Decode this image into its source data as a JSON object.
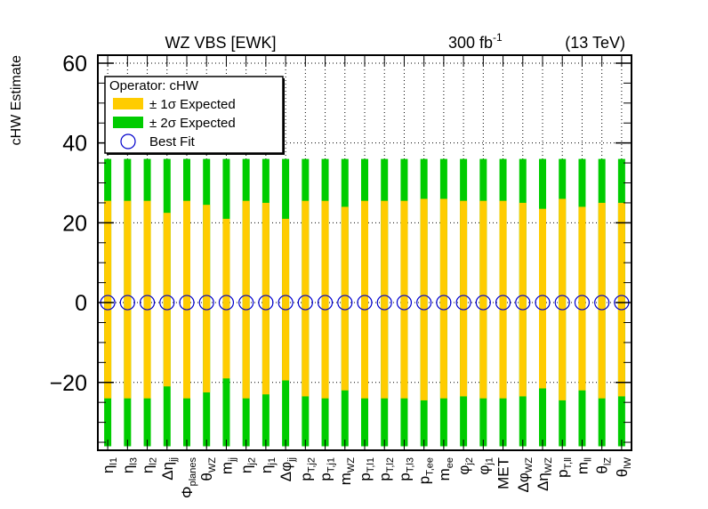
{
  "header": {
    "title": "WZ VBS [EWK]",
    "lumi": "300 fb",
    "lumi_exp": "-1",
    "energy": "(13 TeV)"
  },
  "legend": {
    "title": "Operator: cHW",
    "items": [
      {
        "label": "± 1σ Expected",
        "color": "#ffcc00"
      },
      {
        "label": "± 2σ Expected",
        "color": "#00cc00"
      },
      {
        "label": "Best Fit",
        "color": "#0000cc"
      }
    ]
  },
  "chart_data": {
    "type": "bar",
    "ylabel": "cHW Estimate",
    "ylim": [
      -37,
      62
    ],
    "yticks": [
      -20,
      0,
      20,
      40,
      60
    ],
    "grid": true,
    "legend_position": "top-left",
    "categories": [
      {
        "base": "η",
        "sub": "l1"
      },
      {
        "base": "η",
        "sub": "l3"
      },
      {
        "base": "η",
        "sub": "l2"
      },
      {
        "base": "Δη",
        "sub": "jj"
      },
      {
        "base": "Φ",
        "sub": "planes"
      },
      {
        "base": "θ",
        "sub": "WZ"
      },
      {
        "base": "m",
        "sub": "jj"
      },
      {
        "base": "η",
        "sub": "j2"
      },
      {
        "base": "η",
        "sub": "j1"
      },
      {
        "base": "Δφ",
        "sub": "jj"
      },
      {
        "base": "p",
        "sub": "T,j2"
      },
      {
        "base": "p",
        "sub": "T,j1"
      },
      {
        "base": "m",
        "sub": "WZ"
      },
      {
        "base": "p",
        "sub": "T,l1"
      },
      {
        "base": "p",
        "sub": "T,l2"
      },
      {
        "base": "p",
        "sub": "T,l3"
      },
      {
        "base": "p",
        "sub": "T,ee"
      },
      {
        "base": "m",
        "sub": "ee"
      },
      {
        "base": "φ",
        "sub": "j2"
      },
      {
        "base": "φ",
        "sub": "j1"
      },
      {
        "base": "MET",
        "sub": ""
      },
      {
        "base": "Δφ",
        "sub": "WZ"
      },
      {
        "base": "Δη",
        "sub": "WZ"
      },
      {
        "base": "p",
        "sub": "T,ll"
      },
      {
        "base": "m",
        "sub": "ll"
      },
      {
        "base": "θ",
        "sub": "lZ"
      },
      {
        "base": "θ",
        "sub": "lW"
      }
    ],
    "best_fit": [
      0,
      0,
      0,
      0,
      0,
      0,
      0,
      0,
      0,
      0,
      0,
      0,
      0,
      0,
      0,
      0,
      0,
      0,
      0,
      0,
      0,
      0,
      0,
      0,
      0,
      0,
      0
    ],
    "sigma1": [
      [
        -24,
        25.5
      ],
      [
        -24,
        25.5
      ],
      [
        -24,
        25.5
      ],
      [
        -21,
        22.5
      ],
      [
        -24,
        25.5
      ],
      [
        -22.5,
        24.5
      ],
      [
        -19,
        21
      ],
      [
        -24,
        25.5
      ],
      [
        -23,
        25
      ],
      [
        -19.5,
        21
      ],
      [
        -23.5,
        25.5
      ],
      [
        -24,
        25.5
      ],
      [
        -22,
        24
      ],
      [
        -24,
        25.5
      ],
      [
        -24,
        25.5
      ],
      [
        -24,
        25.5
      ],
      [
        -24.5,
        26
      ],
      [
        -24,
        26
      ],
      [
        -23.5,
        25.5
      ],
      [
        -24,
        25.5
      ],
      [
        -24,
        25.5
      ],
      [
        -23.5,
        25
      ],
      [
        -21.5,
        23.5
      ],
      [
        -24.5,
        26
      ],
      [
        -22,
        24
      ],
      [
        -24,
        25
      ],
      [
        -23.5,
        25
      ]
    ],
    "sigma2": [
      -36,
      36
    ]
  }
}
